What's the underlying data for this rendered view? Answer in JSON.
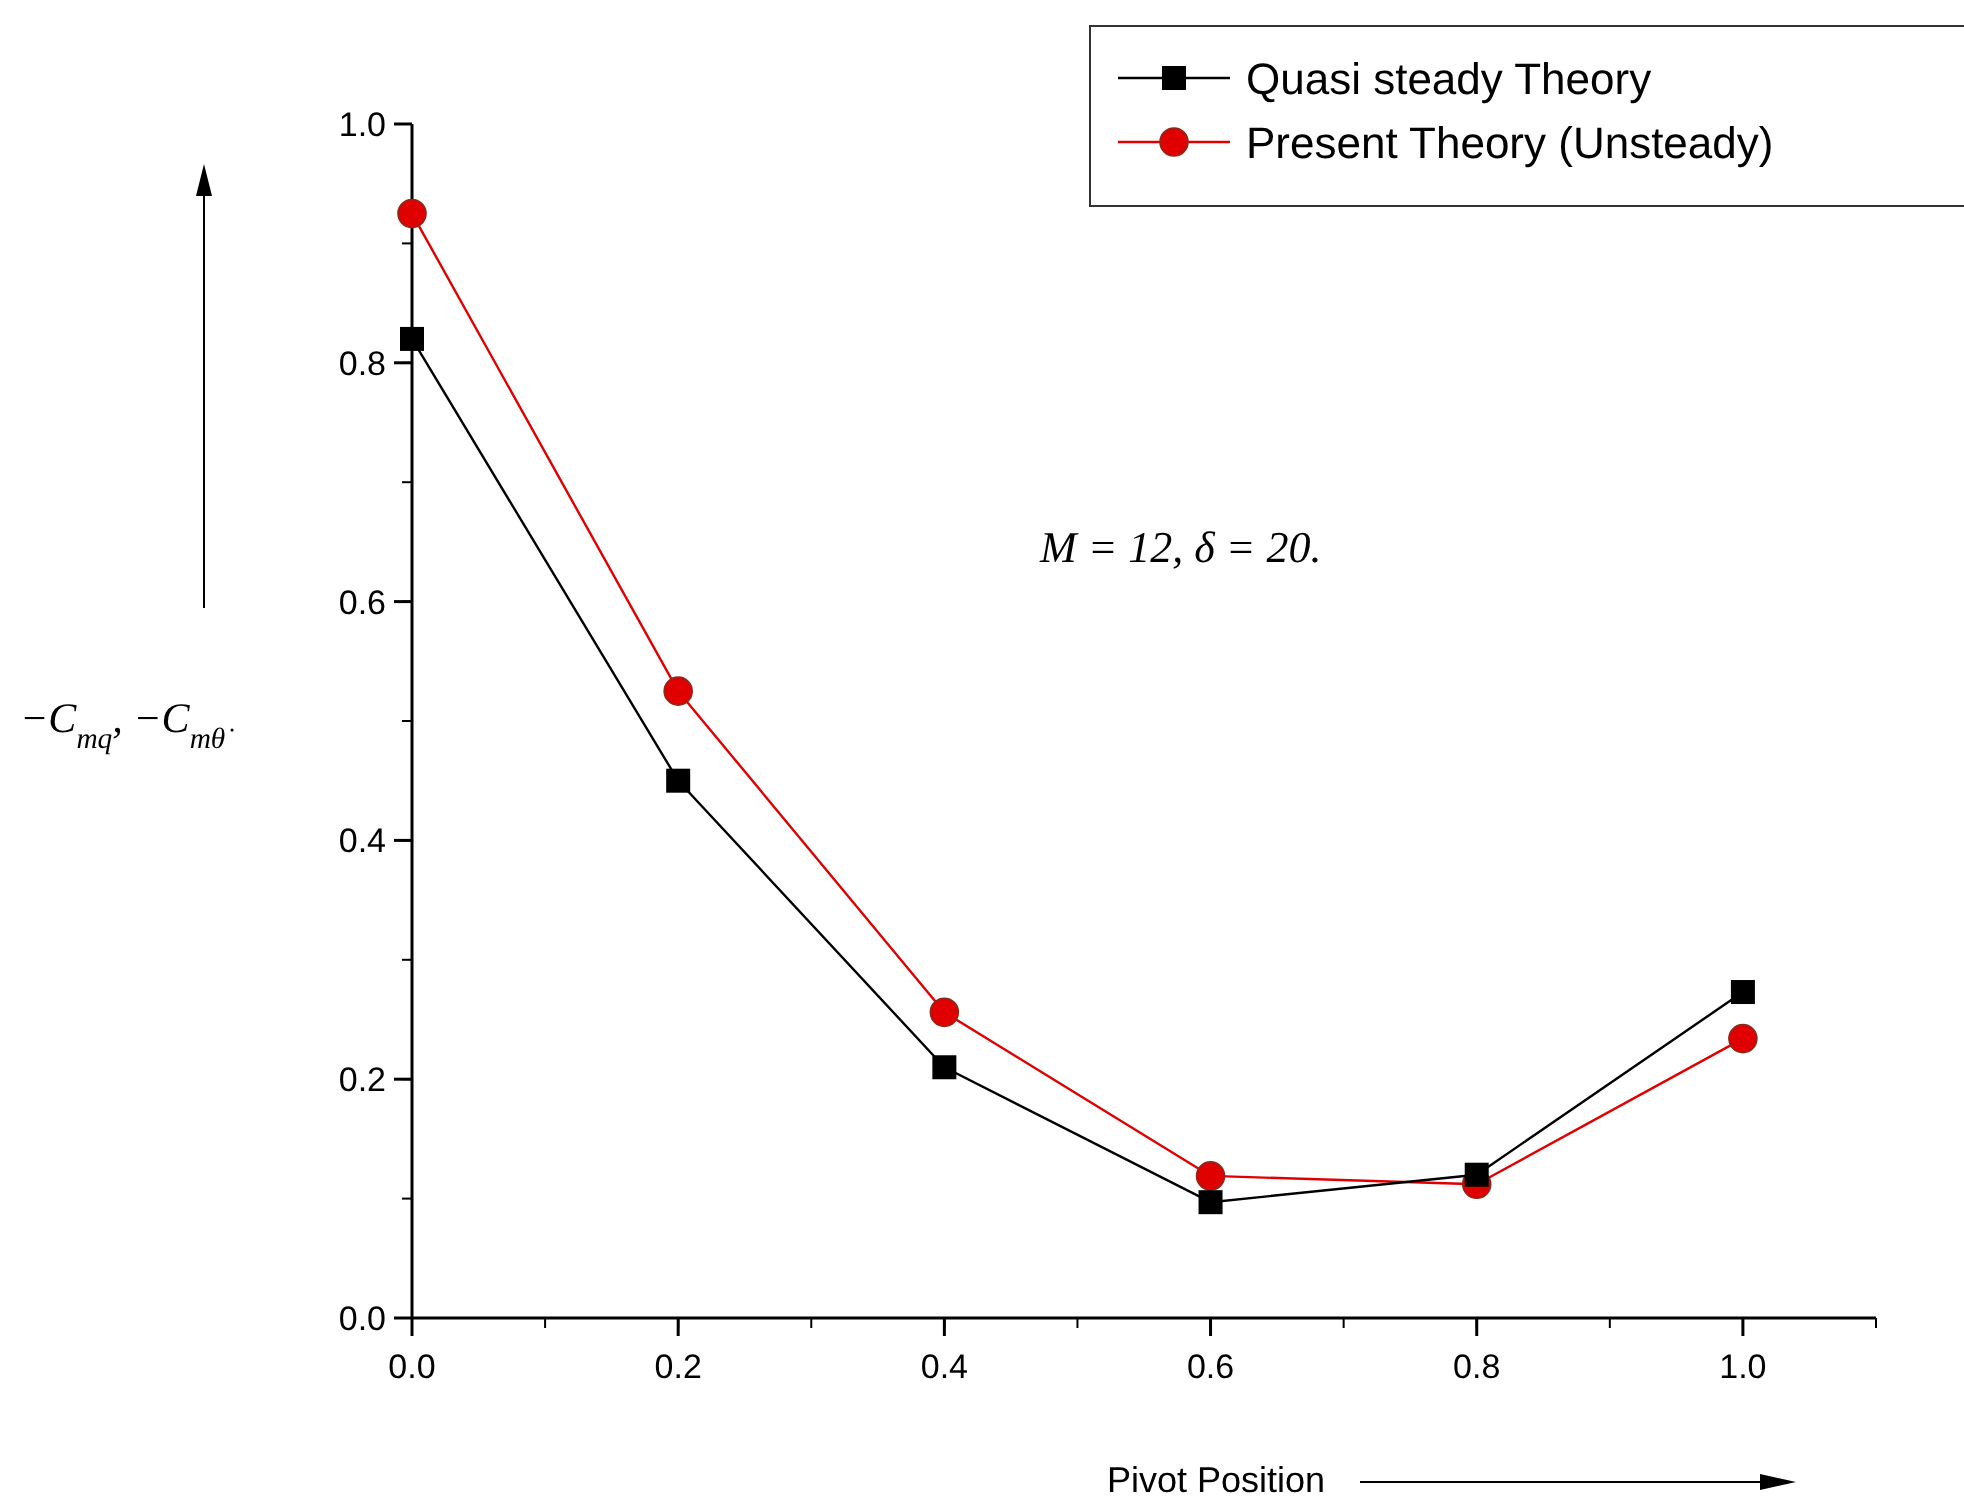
{
  "chart_data": {
    "type": "line",
    "xlabel": "Pivot Position",
    "ylabel": "−C$_{mq}$, −C$_{mθ̇}$",
    "annotations": [
      "M = 12, δ = 20."
    ],
    "x": [
      0,
      0.2,
      0.4,
      0.6,
      0.8,
      1.0
    ],
    "series": [
      {
        "name": "Quasi steady Theory",
        "color": "#000000",
        "marker": "square",
        "values": [
          0.82,
          0.45,
          0.21,
          0.097,
          0.12,
          0.273
        ]
      },
      {
        "name": "Present Theory (Unsteady)",
        "color": "#e00000",
        "marker": "circle",
        "values": [
          0.925,
          0.525,
          0.256,
          0.119,
          0.112,
          0.234
        ]
      }
    ],
    "xlim": [
      0,
      1.1
    ],
    "ylim": [
      0,
      1.0
    ],
    "xticks": [
      {
        "value": 0,
        "label": "0.0"
      },
      {
        "value": 0.2,
        "label": "0.2"
      },
      {
        "value": 0.4,
        "label": "0.4"
      },
      {
        "value": 0.6,
        "label": "0.6"
      },
      {
        "value": 0.8,
        "label": "0.8"
      },
      {
        "value": 1.0,
        "label": "1.0"
      }
    ],
    "yticks": [
      {
        "value": 0,
        "label": "0.0"
      },
      {
        "value": 0.2,
        "label": "0.2"
      },
      {
        "value": 0.4,
        "label": "0.4"
      },
      {
        "value": 0.6,
        "label": "0.6"
      },
      {
        "value": 0.8,
        "label": "0.8"
      },
      {
        "value": 1.0,
        "label": "1.0"
      }
    ],
    "grid": false,
    "legend": "top right",
    "line_style": "solid"
  }
}
